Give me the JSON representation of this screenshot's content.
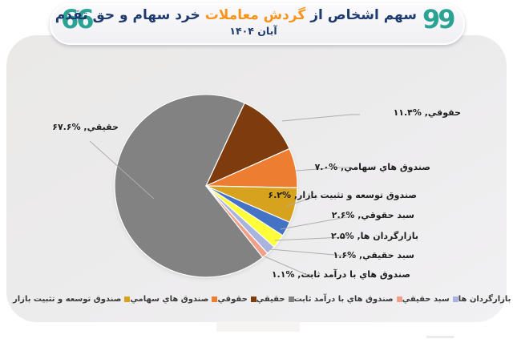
{
  "header": {
    "open_quote": "66",
    "close_quote": "99",
    "title_prefix": "سهم اشخاص از ",
    "title_highlight": "گردش معاملات",
    "title_suffix": " خرد سهام و حق تقدم",
    "subtitle": "آبان ۱۴۰۴",
    "colors": {
      "title": "#1E3A6E",
      "highlight": "#F7941D",
      "quotes": "#2AA394"
    }
  },
  "chart_data": {
    "type": "pie",
    "title": "سهم اشخاص از گردش معاملات خرد سهام و حق تقدم — آبان ۱۴۰۴",
    "unit": "%",
    "direction": "clockwise",
    "start_angle_deg": 141.6,
    "legend_position": "bottom",
    "grid": false,
    "series": [
      {
        "name": "حقیقي",
        "value": 67.6,
        "value_fa": "۶۷.۶",
        "color": "#828282"
      },
      {
        "name": "حقوقي",
        "value": 11.4,
        "value_fa": "۱۱.۴",
        "color": "#7E3B0E"
      },
      {
        "name": "صندوق هاي سهامي",
        "value": 7.0,
        "value_fa": "۷.۰",
        "color": "#ED7D31"
      },
      {
        "name": "صندوق توسعه و تثبیت بازار",
        "value": 6.2,
        "value_fa": "۶.۲",
        "color": "#D7A21E"
      },
      {
        "name": "سبد حقوقي",
        "value": 2.6,
        "value_fa": "۲.۶",
        "color": "#4472C4"
      },
      {
        "name": "بازارگردان ها",
        "value": 2.5,
        "value_fa": "۲.۵",
        "color": "#FDFD3A"
      },
      {
        "name": "سبد حقیقي",
        "value": 1.6,
        "value_fa": "۱.۶",
        "color": "#A9B4DE"
      },
      {
        "name": "صندوق هاي با درآمد ثابت",
        "value": 1.1,
        "value_fa": "۱.۱",
        "color": "#EFA086"
      }
    ],
    "legend_order_ltr": [
      3,
      2,
      1,
      0,
      7,
      6,
      5,
      4
    ],
    "label_format": "name, %value",
    "leader_line_color": "#ADADAD",
    "slice_border_color": "#FFFFFF"
  }
}
